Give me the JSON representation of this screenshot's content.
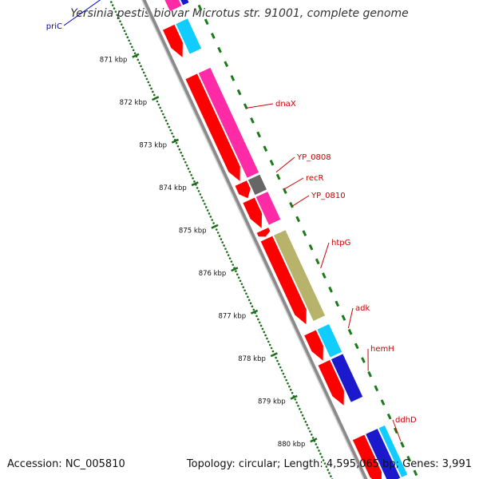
{
  "title": "Yersinia pestis biovar Microtus str. 91001, complete genome",
  "footer": {
    "accession": "Accession: NC_005810",
    "summary": "Topology: circular; Length: 4,595,065 bp; Genes: 3,991"
  },
  "colors": {
    "backbone": "#8a8a8a",
    "forward_gene": "#ff0000",
    "gc_skew_positive": "#1a7a1a",
    "label_line": "#cc0000",
    "label_text": "#cc0000",
    "pric_label": "#0000cc",
    "tick": "#1a6e1a"
  },
  "ruler": {
    "ticks": [
      {
        "label": "871 kbp",
        "kbp": 871
      },
      {
        "label": "872 kbp",
        "kbp": 872
      },
      {
        "label": "873 kbp",
        "kbp": 873
      },
      {
        "label": "874 kbp",
        "kbp": 874
      },
      {
        "label": "875 kbp",
        "kbp": 875
      },
      {
        "label": "876 kbp",
        "kbp": 876
      },
      {
        "label": "877 kbp",
        "kbp": 877
      },
      {
        "label": "878 kbp",
        "kbp": 878
      },
      {
        "label": "879 kbp",
        "kbp": 879
      },
      {
        "label": "880 kbp",
        "kbp": 880
      }
    ]
  },
  "gene_labels": [
    {
      "name": "priC",
      "color": "#0000cc"
    },
    {
      "name": "dnaX",
      "color": "#cc0000"
    },
    {
      "name": "YP_0808",
      "color": "#cc0000"
    },
    {
      "name": "recR",
      "color": "#cc0000"
    },
    {
      "name": "YP_0810",
      "color": "#cc0000"
    },
    {
      "name": "htpG",
      "color": "#cc0000"
    },
    {
      "name": "adk",
      "color": "#cc0000"
    },
    {
      "name": "hemH",
      "color": "#cc0000"
    },
    {
      "name": "ddhD",
      "color": "#cc0000"
    }
  ],
  "features": [
    {
      "kbp_start": 870.75,
      "kbp_end": 871.45,
      "track": "cds",
      "color": "#ff0000",
      "arrow": true
    },
    {
      "kbp_start": 870.75,
      "kbp_end": 871.45,
      "track": "cog",
      "color": "#11ccff",
      "arrow": false
    },
    {
      "kbp_start": 871.9,
      "kbp_end": 874.35,
      "track": "cds",
      "color": "#ff0000",
      "arrow": true
    },
    {
      "kbp_start": 871.9,
      "kbp_end": 874.35,
      "track": "cog",
      "color": "#ff2aa6",
      "arrow": false
    },
    {
      "kbp_start": 874.4,
      "kbp_end": 874.75,
      "track": "cds",
      "color": "#ff0000",
      "arrow": true
    },
    {
      "kbp_start": 874.4,
      "kbp_end": 874.75,
      "track": "cog",
      "color": "#666666",
      "arrow": false
    },
    {
      "kbp_start": 874.8,
      "kbp_end": 875.45,
      "track": "cds",
      "color": "#ff0000",
      "arrow": true
    },
    {
      "kbp_start": 874.8,
      "kbp_end": 875.45,
      "track": "cog",
      "color": "#ff2aa6",
      "arrow": false
    },
    {
      "kbp_start": 875.5,
      "kbp_end": 875.65,
      "track": "cds",
      "color": "#ff0000",
      "arrow": true
    },
    {
      "kbp_start": 875.7,
      "kbp_end": 877.7,
      "track": "cds",
      "color": "#ff0000",
      "arrow": true
    },
    {
      "kbp_start": 875.7,
      "kbp_end": 877.7,
      "track": "cog",
      "color": "#b8b36b",
      "arrow": false
    },
    {
      "kbp_start": 877.9,
      "kbp_end": 878.55,
      "track": "cds",
      "color": "#ff0000",
      "arrow": true
    },
    {
      "kbp_start": 877.9,
      "kbp_end": 878.55,
      "track": "cog",
      "color": "#11ccff",
      "arrow": false
    },
    {
      "kbp_start": 878.6,
      "kbp_end": 879.6,
      "track": "cds",
      "color": "#ff0000",
      "arrow": true
    },
    {
      "kbp_start": 878.6,
      "kbp_end": 879.6,
      "track": "cog",
      "color": "#1a1acc",
      "arrow": false
    },
    {
      "kbp_start": 880.35,
      "kbp_end": 881.5,
      "track": "cds",
      "color": "#ff0000",
      "arrow": true
    },
    {
      "kbp_start": 880.35,
      "kbp_end": 881.5,
      "track": "cog",
      "color": "#1a1acc",
      "arrow": false
    },
    {
      "kbp_start": 880.35,
      "kbp_end": 881.5,
      "track": "cog2",
      "color": "#11ccff",
      "arrow": false
    },
    {
      "kbp_start": 870.1,
      "kbp_end": 870.45,
      "track": "cog",
      "color": "#ff2aa6",
      "arrow": false
    },
    {
      "kbp_start": 870.1,
      "kbp_end": 870.45,
      "track": "cog2",
      "color": "#1a1acc",
      "arrow": false
    }
  ]
}
